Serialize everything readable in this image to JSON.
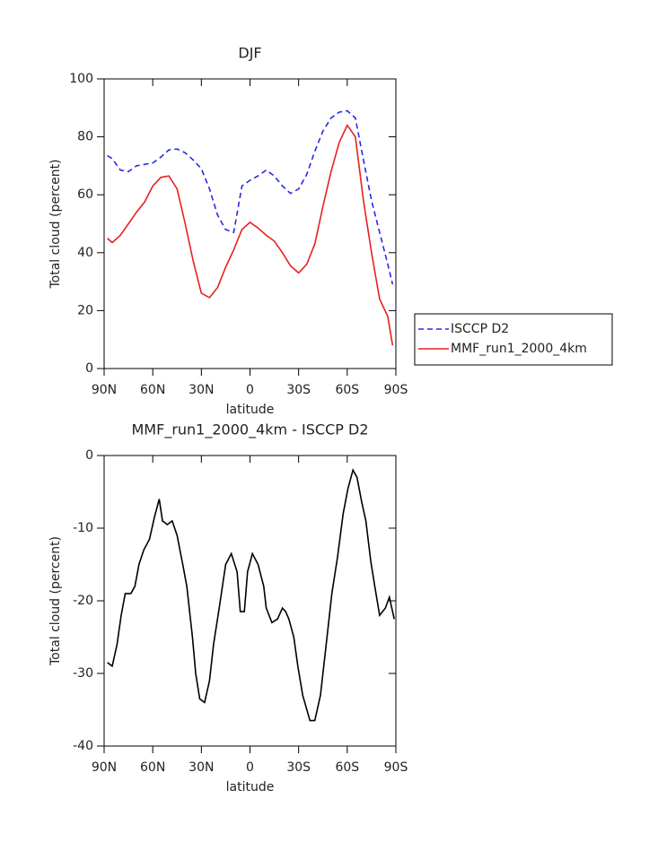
{
  "chart_data": [
    {
      "type": "line",
      "title": "DJF",
      "xlabel": "latitude",
      "ylabel": "Total cloud (percent)",
      "x": [
        88,
        85,
        80,
        75,
        70,
        65,
        60,
        55,
        50,
        45,
        40,
        35,
        30,
        25,
        20,
        15,
        10,
        5,
        0,
        -5,
        -10,
        -15,
        -20,
        -25,
        -30,
        -35,
        -40,
        -45,
        -50,
        -55,
        -60,
        -65,
        -70,
        -75,
        -80,
        -85,
        -88
      ],
      "series": [
        {
          "name": "ISCCP D2",
          "color": "#2a2ae0",
          "linestyle": "dashed",
          "values": [
            73.5,
            72.5,
            68.5,
            68,
            70,
            70.5,
            71,
            73,
            75.5,
            75.8,
            74.5,
            72,
            69,
            62,
            53,
            48,
            47,
            63,
            65,
            66.5,
            68.5,
            66.5,
            63,
            60.5,
            62,
            67,
            75,
            82,
            86.5,
            88.5,
            89,
            86.5,
            72,
            58,
            47,
            36,
            29
          ]
        },
        {
          "name": "MMF_run1_2000_4km",
          "color": "#e82020",
          "linestyle": "solid",
          "values": [
            45,
            43.5,
            46,
            50,
            54,
            57.5,
            63,
            66,
            66.5,
            62,
            50,
            37,
            26,
            24.5,
            28,
            35,
            41,
            48,
            50.5,
            48.5,
            46,
            44,
            40,
            35.5,
            33,
            36,
            43,
            56,
            68,
            78,
            84,
            80,
            58,
            40,
            24,
            18,
            8
          ]
        }
      ],
      "xlim": [
        90,
        -90
      ],
      "xticks": [
        {
          "value": 90,
          "label": "90N"
        },
        {
          "value": 60,
          "label": "60N"
        },
        {
          "value": 30,
          "label": "30N"
        },
        0,
        {
          "value": -30,
          "label": "30S"
        },
        {
          "value": -60,
          "label": "60S"
        },
        {
          "value": -90,
          "label": "90S"
        }
      ],
      "ylim": [
        0,
        100
      ],
      "yticks": [
        0,
        20,
        40,
        60,
        80,
        100
      ],
      "legend": "right"
    },
    {
      "type": "line",
      "title": "MMF_run1_2000_4km - ISCCP D2",
      "xlabel": "latitude",
      "ylabel": "Total cloud (percent)",
      "x": [
        88,
        85,
        82,
        79.5,
        77,
        73.5,
        71,
        68.5,
        65.5,
        62,
        59,
        56,
        54,
        51,
        48,
        45,
        41.5,
        39,
        35.5,
        33.5,
        31,
        28,
        25,
        22.5,
        19,
        15,
        11.5,
        8,
        6,
        3.5,
        1.5,
        -1.5,
        -5,
        -8.5,
        -10,
        -13.5,
        -17,
        -20,
        -22,
        -24,
        -27,
        -29.5,
        -32.5,
        -37,
        -40,
        -43.5,
        -47,
        -50.5,
        -54,
        -57.5,
        -60.5,
        -63.5,
        -66,
        -69,
        -71.5,
        -74.5,
        -77,
        -80,
        -83.5,
        -86,
        -89
      ],
      "series": [
        {
          "color": "#000000",
          "linestyle": "solid",
          "values": [
            -28.5,
            -29,
            -26,
            -22,
            -19,
            -19,
            -18,
            -15,
            -13,
            -11.5,
            -8.5,
            -6,
            -9,
            -9.5,
            -9,
            -11,
            -15,
            -18,
            -25,
            -30,
            -33.5,
            -34,
            -31,
            -26,
            -21,
            -15,
            -13.5,
            -16,
            -21.5,
            -21.5,
            -16,
            -13.5,
            -15,
            -18,
            -21,
            -23,
            -22.5,
            -21,
            -21.5,
            -22.5,
            -25,
            -29,
            -33,
            -36.5,
            -36.5,
            -33,
            -26,
            -19,
            -14,
            -8,
            -4.5,
            -2,
            -3,
            -6.5,
            -9,
            -14.5,
            -18,
            -22,
            -21,
            -19.5,
            -22.5
          ]
        }
      ],
      "xlim": [
        90,
        -90
      ],
      "xticks": [
        {
          "value": 90,
          "label": "90N"
        },
        {
          "value": 60,
          "label": "60N"
        },
        {
          "value": 30,
          "label": "30N"
        },
        0,
        {
          "value": -30,
          "label": "30S"
        },
        {
          "value": -60,
          "label": "60S"
        },
        {
          "value": -90,
          "label": "90S"
        }
      ],
      "ylim": [
        -40,
        0
      ],
      "yticks": [
        -40,
        -30,
        -20,
        -10,
        0
      ]
    }
  ]
}
